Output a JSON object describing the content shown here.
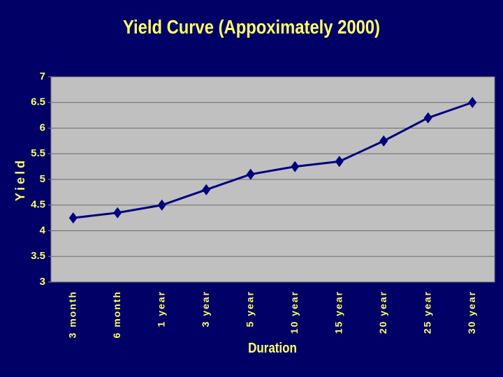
{
  "chart_data": {
    "type": "line",
    "title": "Yield Curve (Appoximately 2000)",
    "x_label": "Duration",
    "y_label": "Yield",
    "categories": [
      "3 month",
      "6 month",
      "1 year",
      "3 year",
      "5 year",
      "10 year",
      "15 year",
      "20 year",
      "25 year",
      "30 year"
    ],
    "series": [
      {
        "name": "Yield",
        "color": "#000080",
        "values": [
          4.25,
          4.35,
          4.5,
          4.8,
          5.1,
          5.25,
          5.35,
          5.75,
          6.2,
          6.5
        ]
      }
    ],
    "ylim": [
      3,
      7
    ],
    "yticks": [
      3,
      3.5,
      4,
      4.5,
      5,
      5.5,
      6,
      6.5,
      7
    ],
    "grid": true
  }
}
